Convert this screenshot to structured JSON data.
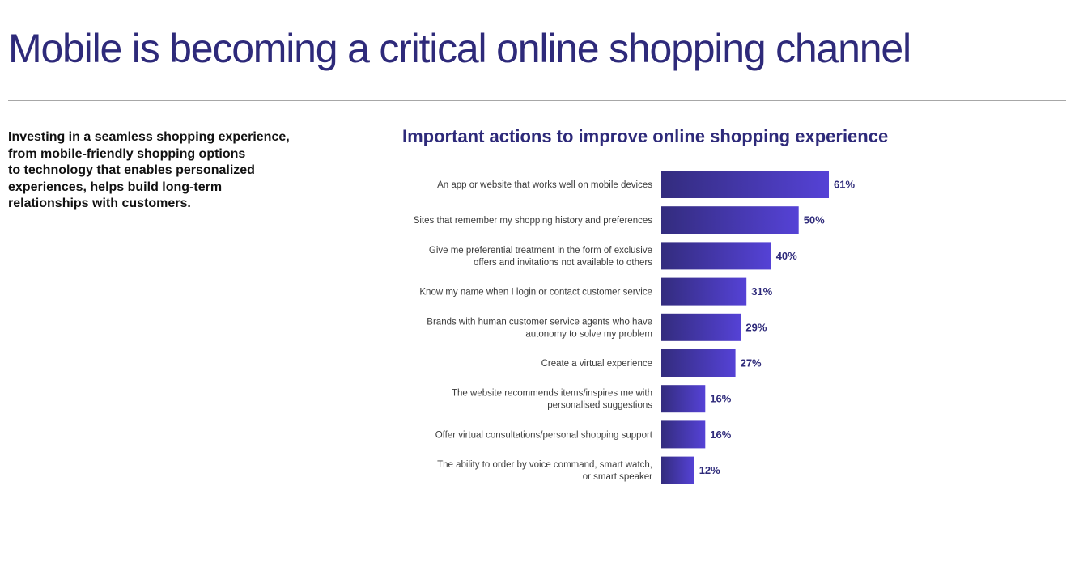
{
  "page": {
    "title": "Mobile is becoming a critical online shopping channel",
    "intro_lines": [
      "Investing in a seamless shopping experience,",
      "from mobile-friendly shopping options",
      "to technology that enables personalized",
      "experiences, helps build long-term",
      "relationships with customers."
    ]
  },
  "colors": {
    "title": "#2e2a7a",
    "bar_start": "#332c7e",
    "bar_end": "#5542d6",
    "value_label": "#2e2a7a"
  },
  "chart_data": {
    "type": "bar",
    "orientation": "horizontal",
    "title": "Important actions to improve online shopping experience",
    "categories": [
      [
        "An app or website that works well on mobile devices"
      ],
      [
        "Sites that remember my shopping history and preferences"
      ],
      [
        "Give me preferential treatment in the form of exclusive",
        "offers and invitations not available to others"
      ],
      [
        "Know my name when I login or contact customer service"
      ],
      [
        "Brands with human customer service agents who have",
        "autonomy to solve my problem"
      ],
      [
        "Create a virtual experience"
      ],
      [
        "The website recommends items/inspires me with",
        "personalised suggestions"
      ],
      [
        "Offer virtual consultations/personal shopping support"
      ],
      [
        "The ability to order by voice command, smart watch,",
        "or smart speaker"
      ]
    ],
    "values": [
      61,
      50,
      40,
      31,
      29,
      27,
      16,
      16,
      12
    ],
    "value_labels": [
      "61%",
      "50%",
      "40%",
      "31%",
      "29%",
      "27%",
      "16%",
      "16%",
      "12%"
    ],
    "unit": "%",
    "xlim": [
      0,
      61
    ],
    "grid": false,
    "legend": "none"
  }
}
